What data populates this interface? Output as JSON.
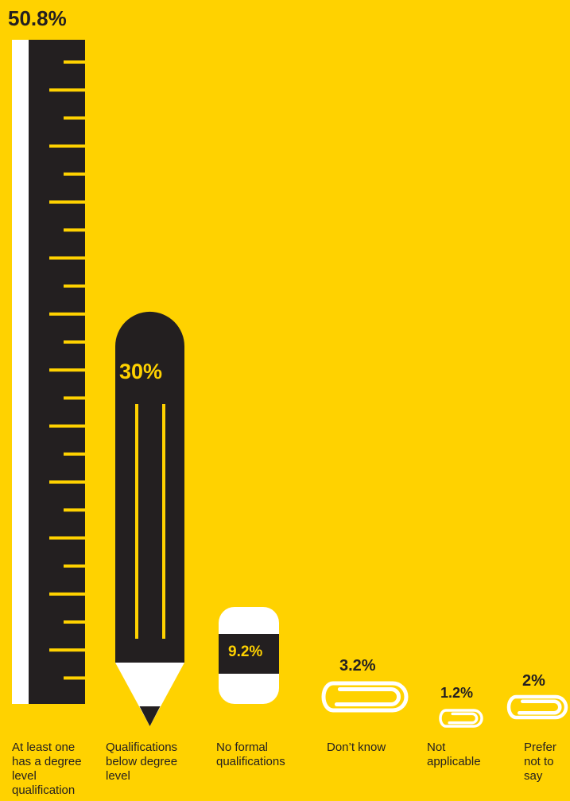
{
  "chart_data": {
    "type": "bar",
    "categories": [
      "At least one has a degree level qualification",
      "Qualifications below degree level",
      "No formal qualifications",
      "Don’t know",
      "Not applicable",
      "Prefer not to say"
    ],
    "values": [
      50.8,
      30,
      9.2,
      3.2,
      1.2,
      2
    ],
    "value_labels": [
      "50.8%",
      "30%",
      "9.2%",
      "3.2%",
      "1.2%",
      "2%"
    ],
    "title": "",
    "xlabel": "",
    "ylabel": "",
    "ylim": [
      0,
      50.8
    ],
    "grid": false,
    "legend": "none",
    "mark_icons": [
      "ruler-icon",
      "pencil-icon",
      "eraser-icon",
      "paperclip-icon",
      "paperclip-icon",
      "paperclip-icon"
    ]
  },
  "colors": {
    "background": "#FFD200",
    "dark": "#231F20",
    "white": "#FFFFFF",
    "accent": "#FFD200"
  }
}
